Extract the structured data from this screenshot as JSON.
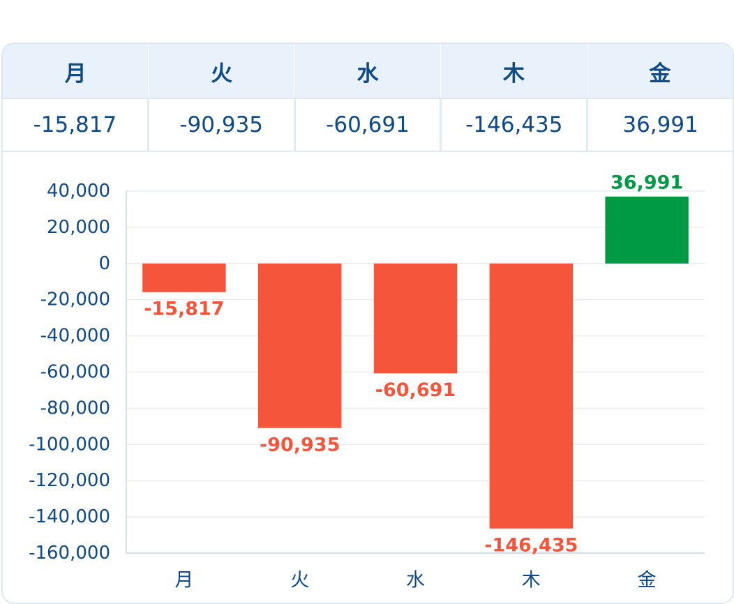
{
  "table": {
    "headers": [
      "月",
      "火",
      "水",
      "木",
      "金"
    ],
    "values": [
      "-15,817",
      "-90,935",
      "-60,691",
      "-146,435",
      "36,991"
    ]
  },
  "colors": {
    "negative": "#f4553b",
    "positive": "#009a44",
    "text": "#0e4a88",
    "grid": "#e6edf4",
    "axis": "#c6d5e4"
  },
  "chart_data": {
    "type": "bar",
    "title": "",
    "xlabel": "",
    "ylabel": "",
    "categories": [
      "月",
      "火",
      "水",
      "木",
      "金"
    ],
    "values": [
      -15817,
      -90935,
      -60691,
      -146435,
      36991
    ],
    "value_labels": [
      "-15,817",
      "-90,935",
      "-60,691",
      "-146,435",
      "36,991"
    ],
    "ylim": [
      -160000,
      40000
    ],
    "yticks": [
      40000,
      20000,
      0,
      -20000,
      -40000,
      -60000,
      -80000,
      -100000,
      -120000,
      -140000,
      -160000
    ],
    "ytick_labels": [
      "40,000",
      "20,000",
      "0",
      "-20,000",
      "-40,000",
      "-60,000",
      "-80,000",
      "-100,000",
      "-120,000",
      "-140,000",
      "-160,000"
    ],
    "grid": true,
    "legend": "none"
  }
}
